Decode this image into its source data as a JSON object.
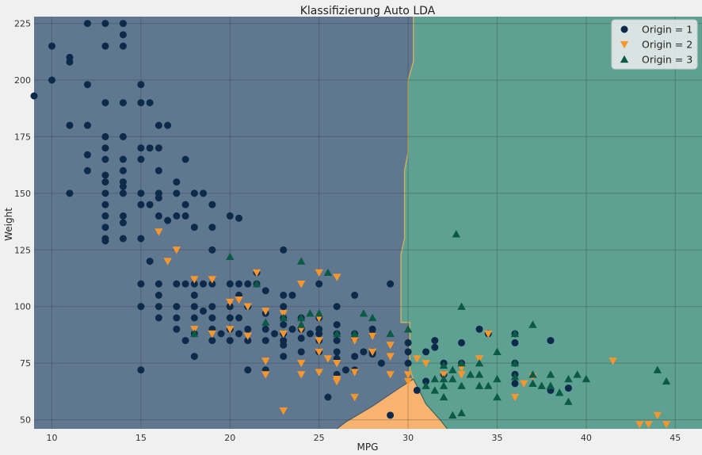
{
  "chart_data": {
    "type": "scatter",
    "title": "Klassifizierung Auto LDA",
    "xlabel": "MPG",
    "ylabel": "Weight",
    "xlim": [
      9,
      46.5
    ],
    "ylim": [
      46,
      228
    ],
    "x_ticks": [
      10,
      15,
      20,
      25,
      30,
      35,
      40,
      45
    ],
    "y_ticks": [
      50,
      75,
      100,
      125,
      150,
      175,
      200,
      225
    ],
    "grid": true,
    "legend_position": "top-right",
    "regions": [
      {
        "class": "Origin = 1",
        "color": "#5f7890"
      },
      {
        "class": "Origin = 2",
        "color": "#f7b36f"
      },
      {
        "class": "Origin = 3",
        "color": "#5ea092"
      }
    ],
    "boundary_1_3": [
      [
        30.3,
        228
      ],
      [
        30.3,
        208
      ],
      [
        30.0,
        200
      ],
      [
        30.0,
        168
      ],
      [
        29.8,
        160
      ],
      [
        29.8,
        130
      ],
      [
        29.6,
        123
      ],
      [
        29.6,
        93
      ],
      [
        30.1,
        93
      ],
      [
        30.1,
        72
      ],
      [
        30.3,
        68
      ]
    ],
    "region_2_polygon": [
      [
        26.0,
        46
      ],
      [
        26.5,
        49
      ],
      [
        28.0,
        56
      ],
      [
        29.5,
        64
      ],
      [
        30.3,
        68
      ],
      [
        31.0,
        57
      ],
      [
        31.8,
        50
      ],
      [
        32.2,
        46
      ]
    ],
    "series": [
      {
        "name": "Origin = 1",
        "marker": "circle",
        "color": "#0d2a4b",
        "points": [
          [
            9,
            193
          ],
          [
            10,
            215
          ],
          [
            10,
            200
          ],
          [
            11,
            210
          ],
          [
            11,
            208
          ],
          [
            11,
            180
          ],
          [
            11,
            150
          ],
          [
            12,
            225
          ],
          [
            12,
            198
          ],
          [
            12,
            180
          ],
          [
            12,
            167
          ],
          [
            12,
            160
          ],
          [
            13,
            225
          ],
          [
            13,
            215
          ],
          [
            13,
            190
          ],
          [
            13,
            175
          ],
          [
            13,
            170
          ],
          [
            13,
            165
          ],
          [
            13,
            158
          ],
          [
            13,
            155
          ],
          [
            13,
            150
          ],
          [
            13,
            145
          ],
          [
            13,
            140
          ],
          [
            13,
            135
          ],
          [
            13,
            130
          ],
          [
            13,
            129
          ],
          [
            14,
            225
          ],
          [
            14,
            220
          ],
          [
            14,
            215
          ],
          [
            14,
            190
          ],
          [
            14,
            175
          ],
          [
            14,
            165
          ],
          [
            14,
            160
          ],
          [
            14,
            155
          ],
          [
            14,
            153
          ],
          [
            14,
            150
          ],
          [
            14,
            140
          ],
          [
            14,
            137
          ],
          [
            14,
            130
          ],
          [
            15,
            198
          ],
          [
            15,
            190
          ],
          [
            15,
            170
          ],
          [
            15,
            165
          ],
          [
            15,
            150
          ],
          [
            15,
            145
          ],
          [
            15,
            130
          ],
          [
            15,
            110
          ],
          [
            15,
            100
          ],
          [
            15,
            72
          ],
          [
            15.5,
            190
          ],
          [
            15.5,
            170
          ],
          [
            15.5,
            145
          ],
          [
            15.5,
            120
          ],
          [
            16,
            180
          ],
          [
            16,
            170
          ],
          [
            16,
            160
          ],
          [
            16,
            150
          ],
          [
            16,
            148
          ],
          [
            16,
            140
          ],
          [
            16,
            110
          ],
          [
            16,
            105
          ],
          [
            16,
            100
          ],
          [
            16,
            95
          ],
          [
            16.5,
            180
          ],
          [
            16.5,
            138
          ],
          [
            17,
            155
          ],
          [
            17,
            150
          ],
          [
            17,
            140
          ],
          [
            17,
            110
          ],
          [
            17,
            100
          ],
          [
            17,
            95
          ],
          [
            17,
            90
          ],
          [
            17.5,
            165
          ],
          [
            17.5,
            145
          ],
          [
            17.5,
            140
          ],
          [
            17.5,
            110
          ],
          [
            17.5,
            85
          ],
          [
            18,
            150
          ],
          [
            18,
            135
          ],
          [
            18,
            110
          ],
          [
            18,
            105
          ],
          [
            18,
            100
          ],
          [
            18,
            95
          ],
          [
            18,
            88
          ],
          [
            18,
            78
          ],
          [
            18.5,
            150
          ],
          [
            18.5,
            110
          ],
          [
            18.5,
            98
          ],
          [
            19,
            145
          ],
          [
            19,
            135
          ],
          [
            19,
            125
          ],
          [
            19,
            110
          ],
          [
            19,
            100
          ],
          [
            19,
            95
          ],
          [
            19,
            90
          ],
          [
            19,
            85
          ],
          [
            19.5,
            88
          ],
          [
            20,
            140
          ],
          [
            20,
            110
          ],
          [
            20,
            100
          ],
          [
            20,
            95
          ],
          [
            20,
            90
          ],
          [
            20,
            85
          ],
          [
            20.5,
            139
          ],
          [
            20.5,
            110
          ],
          [
            20.5,
            105
          ],
          [
            20.5,
            95
          ],
          [
            20.5,
            88
          ],
          [
            21,
            110
          ],
          [
            21,
            100
          ],
          [
            21,
            90
          ],
          [
            21,
            85
          ],
          [
            21,
            72
          ],
          [
            21.5,
            115
          ],
          [
            21.5,
            110
          ],
          [
            22,
            107
          ],
          [
            22,
            97
          ],
          [
            22,
            90
          ],
          [
            22,
            85
          ],
          [
            22,
            72
          ],
          [
            22.5,
            88
          ],
          [
            23,
            125
          ],
          [
            23,
            105
          ],
          [
            23,
            100
          ],
          [
            23,
            95
          ],
          [
            23,
            92
          ],
          [
            23,
            88
          ],
          [
            23,
            85
          ],
          [
            23,
            83
          ],
          [
            23,
            78
          ],
          [
            23.5,
            105
          ],
          [
            23.5,
            90
          ],
          [
            24,
            95
          ],
          [
            24,
            90
          ],
          [
            24,
            86
          ],
          [
            24,
            80
          ],
          [
            24.5,
            88
          ],
          [
            25,
            110
          ],
          [
            25,
            95
          ],
          [
            25,
            90
          ],
          [
            25,
            88
          ],
          [
            25,
            85
          ],
          [
            25,
            80
          ],
          [
            25.5,
            60
          ],
          [
            26,
            100
          ],
          [
            26,
            92
          ],
          [
            26,
            88
          ],
          [
            26,
            85
          ],
          [
            26,
            80
          ],
          [
            26,
            77
          ],
          [
            26,
            70
          ],
          [
            26.5,
            72
          ],
          [
            27,
            105
          ],
          [
            27,
            88
          ],
          [
            27,
            86
          ],
          [
            27,
            78
          ],
          [
            27,
            72
          ],
          [
            27.5,
            80
          ],
          [
            28,
            90
          ],
          [
            28,
            88
          ],
          [
            28,
            80
          ],
          [
            28,
            79
          ],
          [
            28.5,
            75
          ],
          [
            29,
            110
          ],
          [
            29,
            52
          ],
          [
            30,
            84
          ],
          [
            30,
            80
          ],
          [
            30,
            75
          ],
          [
            30.5,
            63
          ],
          [
            31,
            80
          ],
          [
            31,
            67
          ],
          [
            31.5,
            85
          ],
          [
            31.5,
            82
          ],
          [
            32,
            75
          ],
          [
            32,
            70
          ],
          [
            33,
            84
          ],
          [
            33,
            75
          ],
          [
            34,
            90
          ],
          [
            34.5,
            88
          ],
          [
            36,
            88
          ],
          [
            36,
            84
          ],
          [
            36,
            75
          ],
          [
            36,
            70
          ],
          [
            36,
            66
          ],
          [
            38,
            85
          ],
          [
            38,
            63
          ],
          [
            39,
            64
          ]
        ]
      },
      {
        "name": "Origin = 2",
        "marker": "triangle-down",
        "color": "#f5962f",
        "points": [
          [
            16,
            133
          ],
          [
            16.5,
            120
          ],
          [
            17,
            125
          ],
          [
            18,
            112
          ],
          [
            18,
            90
          ],
          [
            19,
            112
          ],
          [
            19,
            88
          ],
          [
            20,
            102
          ],
          [
            20,
            90
          ],
          [
            20.5,
            103
          ],
          [
            21,
            100
          ],
          [
            21,
            87
          ],
          [
            21.5,
            115
          ],
          [
            22,
            98
          ],
          [
            22,
            76
          ],
          [
            22,
            70
          ],
          [
            23,
            97
          ],
          [
            23,
            88
          ],
          [
            23,
            54
          ],
          [
            24,
            110
          ],
          [
            24,
            90
          ],
          [
            24,
            75
          ],
          [
            24,
            70
          ],
          [
            25,
            115
          ],
          [
            25,
            95
          ],
          [
            25,
            85
          ],
          [
            25,
            80
          ],
          [
            25,
            71
          ],
          [
            25.5,
            77
          ],
          [
            26,
            113
          ],
          [
            26,
            75
          ],
          [
            26,
            67
          ],
          [
            26,
            68
          ],
          [
            27,
            85
          ],
          [
            27,
            71
          ],
          [
            27,
            60
          ],
          [
            28,
            87
          ],
          [
            28,
            80
          ],
          [
            29,
            83
          ],
          [
            29,
            78
          ],
          [
            29,
            70
          ],
          [
            30,
            70
          ],
          [
            30,
            67
          ],
          [
            30.5,
            77
          ],
          [
            31,
            75
          ],
          [
            32,
            70
          ],
          [
            33,
            73
          ],
          [
            33,
            70
          ],
          [
            34,
            77
          ],
          [
            34.5,
            88
          ],
          [
            36,
            60
          ],
          [
            36.5,
            66
          ],
          [
            37,
            69
          ],
          [
            41.5,
            76
          ],
          [
            43,
            48
          ],
          [
            43.5,
            48
          ],
          [
            44,
            52
          ],
          [
            44.5,
            48
          ]
        ]
      },
      {
        "name": "Origin = 3",
        "marker": "triangle-up",
        "color": "#0b5a46",
        "points": [
          [
            18,
            88
          ],
          [
            20,
            122
          ],
          [
            21.5,
            110
          ],
          [
            22,
            93
          ],
          [
            23,
            95
          ],
          [
            24,
            120
          ],
          [
            24,
            92
          ],
          [
            24,
            95
          ],
          [
            24.5,
            97
          ],
          [
            25,
            97
          ],
          [
            25.5,
            115
          ],
          [
            26,
            88
          ],
          [
            27,
            88
          ],
          [
            27.5,
            97
          ],
          [
            28,
            95
          ],
          [
            29,
            88
          ],
          [
            30,
            90
          ],
          [
            31,
            65
          ],
          [
            31.5,
            68
          ],
          [
            31.5,
            63
          ],
          [
            32,
            74
          ],
          [
            32,
            68
          ],
          [
            32,
            65
          ],
          [
            32,
            60
          ],
          [
            32.5,
            72
          ],
          [
            32.5,
            68
          ],
          [
            32.5,
            52
          ],
          [
            32.7,
            132
          ],
          [
            33,
            100
          ],
          [
            33,
            75
          ],
          [
            33,
            65
          ],
          [
            33,
            53
          ],
          [
            33.5,
            70
          ],
          [
            34,
            75
          ],
          [
            34,
            70
          ],
          [
            34,
            65
          ],
          [
            34.5,
            65
          ],
          [
            35,
            80
          ],
          [
            35,
            68
          ],
          [
            35,
            60
          ],
          [
            36,
            88
          ],
          [
            36,
            75
          ],
          [
            36,
            69
          ],
          [
            37,
            92
          ],
          [
            37,
            70
          ],
          [
            37,
            66
          ],
          [
            37.5,
            65
          ],
          [
            38,
            70
          ],
          [
            38,
            65
          ],
          [
            38.5,
            62
          ],
          [
            39,
            68
          ],
          [
            39,
            58
          ],
          [
            39.5,
            70
          ],
          [
            40,
            68
          ],
          [
            44,
            72
          ],
          [
            44.5,
            67
          ]
        ]
      }
    ]
  }
}
